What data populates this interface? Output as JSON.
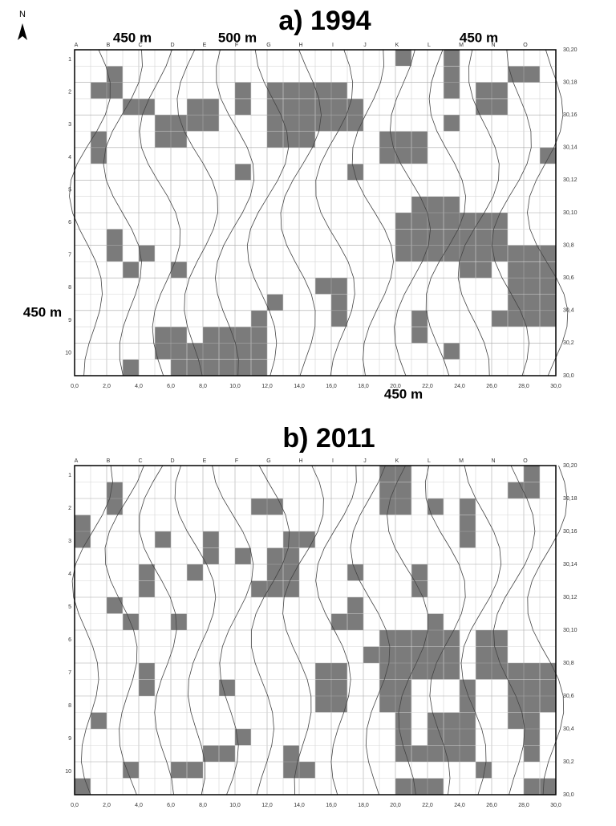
{
  "north": "N",
  "panels": [
    {
      "title": "a) 1994",
      "columns": [
        "A",
        "B",
        "C",
        "D",
        "E",
        "F",
        "G",
        "H",
        "I",
        "J",
        "K",
        "L",
        "M",
        "N",
        "O"
      ],
      "rows": [
        "1",
        "2",
        "3",
        "4",
        "5",
        "6",
        "7",
        "8",
        "9",
        "10"
      ],
      "x_labels": [
        "0,0",
        "2,0",
        "4,0",
        "6,0",
        "8,0",
        "10,0",
        "12,0",
        "14,0",
        "16,0",
        "18,0",
        "20,0",
        "22,0",
        "24,0",
        "26,0",
        "28,0",
        "30,0"
      ],
      "y_labels": [
        "30,20",
        "30,18",
        "30,16",
        "30,14",
        "30,12",
        "30,10",
        "30,8",
        "30,6",
        "30,4",
        "30,2",
        "30,0"
      ],
      "scale_labels": [
        "450 m",
        "500 m",
        "450 m",
        "450 m",
        "450 m"
      ]
    },
    {
      "title": "b) 2011",
      "columns": [
        "A",
        "B",
        "C",
        "D",
        "E",
        "F",
        "G",
        "H",
        "I",
        "J",
        "K",
        "L",
        "M",
        "N",
        "O"
      ],
      "rows": [
        "1",
        "2",
        "3",
        "4",
        "5",
        "6",
        "7",
        "8",
        "9",
        "10"
      ],
      "x_labels": [
        "0,0",
        "2,0",
        "4,0",
        "6,0",
        "8,0",
        "10,0",
        "12,0",
        "14,0",
        "16,0",
        "18,0",
        "20,0",
        "22,0",
        "24,0",
        "26,0",
        "28,0",
        "30,0"
      ],
      "y_labels": [
        "30,20",
        "30,18",
        "30,16",
        "30,14",
        "30,12",
        "30,10",
        "30,8",
        "30,6",
        "30,4",
        "30,2",
        "30,0"
      ]
    }
  ]
}
